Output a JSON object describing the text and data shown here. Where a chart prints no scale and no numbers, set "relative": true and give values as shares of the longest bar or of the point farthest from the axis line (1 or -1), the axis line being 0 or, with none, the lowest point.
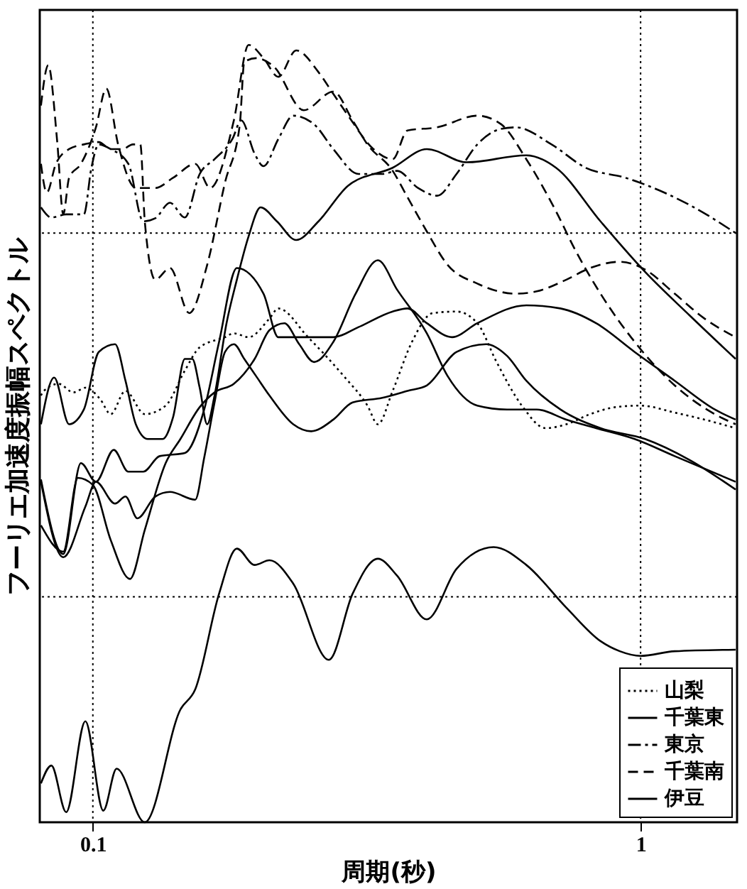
{
  "chart_data": {
    "type": "line",
    "xlabel": "周期(秒)",
    "ylabel": "フーリエ加速度振幅スペクトル",
    "log": "x",
    "relative": true,
    "legend": "bottom right",
    "xlim": [
      0.08,
      1.5
    ],
    "xticks": [
      0.1,
      1
    ],
    "ref_lines": [
      {
        "axis": "x",
        "value": 0.1,
        "line_style": "dotted"
      },
      {
        "axis": "x",
        "value": 1,
        "line_style": "dotted"
      },
      {
        "axis": "y",
        "value": 0.758,
        "line_style": "dotted"
      },
      {
        "axis": "y",
        "value": 0.29,
        "line_style": "dotted"
      }
    ],
    "series": [
      {
        "name": "山梨",
        "color": "#000000",
        "line_style": "dotted",
        "x": [
          0.0804,
          0.0814,
          0.0866,
          0.0922,
          0.0969,
          0.1032,
          0.1078,
          0.1147,
          0.1244,
          0.1358,
          0.1472,
          0.1567,
          0.1743,
          0.1809,
          0.1925,
          0.2101,
          0.2181,
          0.2471,
          0.2871,
          0.3172,
          0.3314,
          0.3527,
          0.3825,
          0.4175,
          0.4613,
          0.5034,
          0.5459,
          0.607,
          0.6707,
          0.732,
          0.8088,
          0.8993,
          1,
          1.154,
          1.308,
          1.491
        ],
        "values": [
          0.549,
          0.555,
          0.564,
          0.553,
          0.559,
          0.544,
          0.525,
          0.555,
          0.525,
          0.536,
          0.581,
          0.611,
          0.624,
          0.629,
          0.624,
          0.648,
          0.661,
          0.624,
          0.574,
          0.536,
          0.512,
          0.555,
          0.618,
          0.655,
          0.657,
          0.642,
          0.592,
          0.536,
          0.507,
          0.512,
          0.525,
          0.534,
          0.536,
          0.527,
          0.518,
          0.507
        ]
      },
      {
        "name": "千葉東",
        "color": "#000000",
        "line_style": "solid",
        "x": [
          0.0804,
          0.0883,
          0.0951,
          0.1013,
          0.1092,
          0.1161,
          0.1236,
          0.1324,
          0.1472,
          0.1597,
          0.17,
          0.1832,
          0.2049,
          0.2181,
          0.2381,
          0.2748,
          0.3056,
          0.3527,
          0.3754,
          0.4071,
          0.4527,
          0.5034,
          0.6185,
          0.7139,
          0.8293,
          0.9753,
          1.154,
          1.366,
          1.491
        ],
        "values": [
          0.441,
          0.345,
          0.462,
          0.438,
          0.479,
          0.451,
          0.451,
          0.471,
          0.475,
          0.531,
          0.618,
          0.713,
          0.68,
          0.624,
          0.624,
          0.624,
          0.637,
          0.657,
          0.661,
          0.642,
          0.624,
          0.642,
          0.665,
          0.661,
          0.642,
          0.605,
          0.568,
          0.531,
          0.518
        ]
      },
      {
        "color": "#000000",
        "line_style": "solid",
        "x": [
          0.0804,
          0.0883,
          0.0969,
          0.1013,
          0.1098,
          0.1147,
          0.1206,
          0.13,
          0.1383,
          0.1538,
          0.1597,
          0.1668,
          0.1743,
          0.1809,
          0.189,
          0.1986,
          0.2101,
          0.2322,
          0.2503,
          0.2748,
          0.298,
          0.3376,
          0.3754,
          0.4071,
          0.4613,
          0.5226,
          0.5703,
          0.6185,
          0.7139,
          0.8449,
          1.019,
          1.229,
          1.491
        ],
        "values": [
          0.438,
          0.341,
          0.406,
          0.438,
          0.41,
          0.419,
          0.391,
          0.419,
          0.425,
          0.415,
          0.469,
          0.54,
          0.605,
          0.615,
          0.596,
          0.574,
          0.549,
          0.512,
          0.503,
          0.518,
          0.54,
          0.546,
          0.555,
          0.562,
          0.605,
          0.615,
          0.6,
          0.568,
          0.531,
          0.507,
          0.493,
          0.466,
          0.428
        ]
      },
      {
        "color": "#000000",
        "line_style": "solid",
        "x": [
          0.0804,
          0.0883,
          0.0939,
          0.1,
          0.1078,
          0.1169,
          0.1244,
          0.1358,
          0.1445,
          0.1567,
          0.1668,
          0.1809,
          0.1974,
          0.2101,
          0.2237,
          0.2381,
          0.2534,
          0.2748,
          0.3018,
          0.3314,
          0.3594,
          0.4071,
          0.4443,
          0.5034,
          0.5703,
          0.6461,
          0.732,
          0.8293,
          0.9753,
          1.154,
          1.491
        ],
        "values": [
          0.382,
          0.348,
          0.443,
          0.434,
          0.363,
          0.313,
          0.376,
          0.462,
          0.493,
          0.534,
          0.553,
          0.564,
          0.596,
          0.633,
          0.642,
          0.615,
          0.592,
          0.618,
          0.68,
          0.723,
          0.685,
          0.629,
          0.574,
          0.536,
          0.531,
          0.531,
          0.518,
          0.507,
          0.493,
          0.471,
          0.438
        ]
      },
      {
        "name": "東京",
        "color": "#000000",
        "line_style": "dashdot",
        "x": [
          0.0804,
          0.084,
          0.0894,
          0.0963,
          0.0994,
          0.1025,
          0.1078,
          0.1161,
          0.1236,
          0.13,
          0.1383,
          0.1472,
          0.1567,
          0.1668,
          0.1798,
          0.1866,
          0.1974,
          0.2049,
          0.2181,
          0.2322,
          0.2534,
          0.2748,
          0.3056,
          0.3376,
          0.3594,
          0.3922,
          0.4253,
          0.4613,
          0.5034,
          0.5562,
          0.592,
          0.6877,
          0.7938,
          0.9395,
          1.105,
          1.252,
          1.491
        ],
        "values": [
          0.791,
          0.778,
          0.782,
          0.782,
          0.842,
          0.872,
          0.866,
          0.847,
          0.773,
          0.777,
          0.797,
          0.778,
          0.834,
          0.853,
          0.879,
          0.903,
          0.86,
          0.844,
          0.879,
          0.909,
          0.898,
          0.866,
          0.834,
          0.834,
          0.838,
          0.816,
          0.806,
          0.834,
          0.872,
          0.892,
          0.894,
          0.872,
          0.842,
          0.829,
          0.81,
          0.791,
          0.758
        ]
      },
      {
        "name": "千葉南",
        "color": "#000000",
        "line_style": "dashed",
        "x": [
          0.0804,
          0.0829,
          0.0861,
          0.0883,
          0.0905,
          0.0951,
          0.1013,
          0.1058,
          0.1112,
          0.1198,
          0.13,
          0.1401,
          0.1538,
          0.1637,
          0.1809,
          0.1925,
          0.2049,
          0.2181,
          0.2351,
          0.2582,
          0.2748,
          0.2925,
          0.3253,
          0.3527,
          0.3754,
          0.4253,
          0.5034,
          0.5562,
          0.6185,
          0.7007,
          0.7599,
          0.8449,
          0.9753,
          1.154,
          1.366,
          1.491
        ],
        "values": [
          0.922,
          0.974,
          0.875,
          0.782,
          0.829,
          0.847,
          0.894,
          0.944,
          0.872,
          0.816,
          0.816,
          0.829,
          0.847,
          0.816,
          0.903,
          1.0,
          0.983,
          0.959,
          0.993,
          0.965,
          0.937,
          0.909,
          0.866,
          0.853,
          0.89,
          0.894,
          0.909,
          0.898,
          0.853,
          0.786,
          0.736,
          0.68,
          0.618,
          0.562,
          0.525,
          0.512
        ]
      },
      {
        "color": "#000000",
        "line_style": "dashed",
        "x": [
          0.0804,
          0.0824,
          0.0856,
          0.0905,
          0.0963,
          0.1025,
          0.1078,
          0.1133,
          0.1183,
          0.1221,
          0.1244,
          0.13,
          0.1383,
          0.15,
          0.1617,
          0.1743,
          0.1855,
          0.189,
          0.1986,
          0.2141,
          0.2426,
          0.2748,
          0.298,
          0.3172,
          0.3527,
          0.3754,
          0.4071,
          0.4443,
          0.5034,
          0.592,
          0.6461,
          0.732,
          0.8088,
          0.9163,
          1.019,
          1.154,
          1.308,
          1.491
        ],
        "values": [
          0.847,
          0.81,
          0.847,
          0.866,
          0.872,
          0.875,
          0.866,
          0.866,
          0.872,
          0.872,
          0.773,
          0.698,
          0.713,
          0.655,
          0.717,
          0.823,
          0.898,
          0.978,
          0.983,
          0.972,
          0.916,
          0.94,
          0.903,
          0.872,
          0.838,
          0.804,
          0.76,
          0.717,
          0.693,
          0.68,
          0.683,
          0.698,
          0.713,
          0.721,
          0.711,
          0.68,
          0.648,
          0.624
        ]
      },
      {
        "name": "伊豆",
        "color": "#000000",
        "line_style": "solid",
        "x": [
          0.0804,
          0.084,
          0.0894,
          0.0969,
          0.1045,
          0.1105,
          0.1244,
          0.1445,
          0.1538,
          0.17,
          0.1832,
          0.1974,
          0.2101,
          0.2322,
          0.2697,
          0.298,
          0.3314,
          0.3594,
          0.4071,
          0.4613,
          0.5391,
          0.6185,
          0.732,
          0.8449,
          0.9163,
          1,
          1.154,
          1.491
        ],
        "values": [
          0.05,
          0.073,
          0.013,
          0.13,
          0.015,
          0.069,
          0,
          0.145,
          0.171,
          0.294,
          0.352,
          0.331,
          0.337,
          0.307,
          0.209,
          0.294,
          0.339,
          0.317,
          0.261,
          0.326,
          0.354,
          0.331,
          0.276,
          0.233,
          0.22,
          0.214,
          0.22,
          0.222
        ]
      },
      {
        "color": "#000000",
        "line_style": "solid",
        "x": [
          0.0804,
          0.085,
          0.0905,
          0.0963,
          0.1025,
          0.1098,
          0.1147,
          0.1198,
          0.126,
          0.1341,
          0.1401,
          0.1472,
          0.1519,
          0.1567,
          0.1617,
          0.1668,
          0.1754,
          0.1832,
          0.1925,
          0.2024,
          0.2168,
          0.2351,
          0.2582,
          0.2925,
          0.3527,
          0.4071,
          0.4819,
          0.6185,
          0.7007,
          0.8449,
          1.019,
          1.229,
          1.491
        ],
        "values": [
          0.512,
          0.572,
          0.512,
          0.531,
          0.605,
          0.615,
          0.568,
          0.512,
          0.493,
          0.493,
          0.521,
          0.596,
          0.596,
          0.559,
          0.512,
          0.549,
          0.642,
          0.698,
          0.754,
          0.791,
          0.773,
          0.749,
          0.773,
          0.819,
          0.842,
          0.866,
          0.849,
          0.858,
          0.842,
          0.773,
          0.708,
          0.652,
          0.596
        ]
      }
    ]
  }
}
